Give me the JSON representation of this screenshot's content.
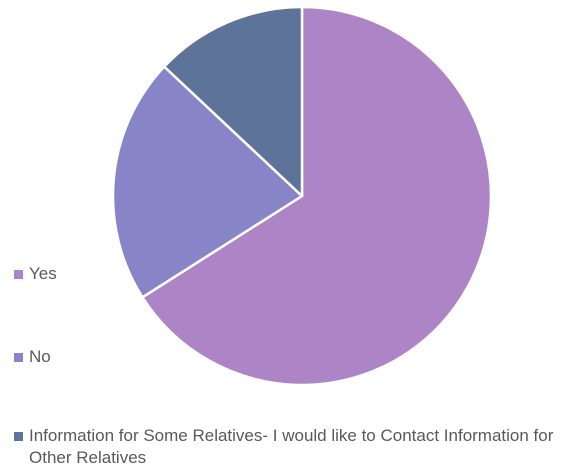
{
  "chart_data": {
    "type": "pie",
    "slices": [
      {
        "label": "Yes",
        "value": 66,
        "color": "#AD84C6"
      },
      {
        "label": "No",
        "value": 21,
        "color": "#8784C7"
      },
      {
        "label": "Information for Some Relatives- I would like to Contact Information for Other Relatives",
        "value": 13,
        "color": "#5D739A"
      }
    ],
    "start_angle_deg": 0,
    "direction": "clockwise",
    "slice_border_color": "#FFFFFF",
    "legend": {
      "position": "left-bottom",
      "entries": [
        {
          "label": "Yes",
          "color": "#AD84C6"
        },
        {
          "label": "No",
          "color": "#8784C7"
        },
        {
          "label": "Information for Some Relatives- I would like to Contact Information for Other Relatives",
          "color": "#5D739A"
        }
      ]
    }
  }
}
